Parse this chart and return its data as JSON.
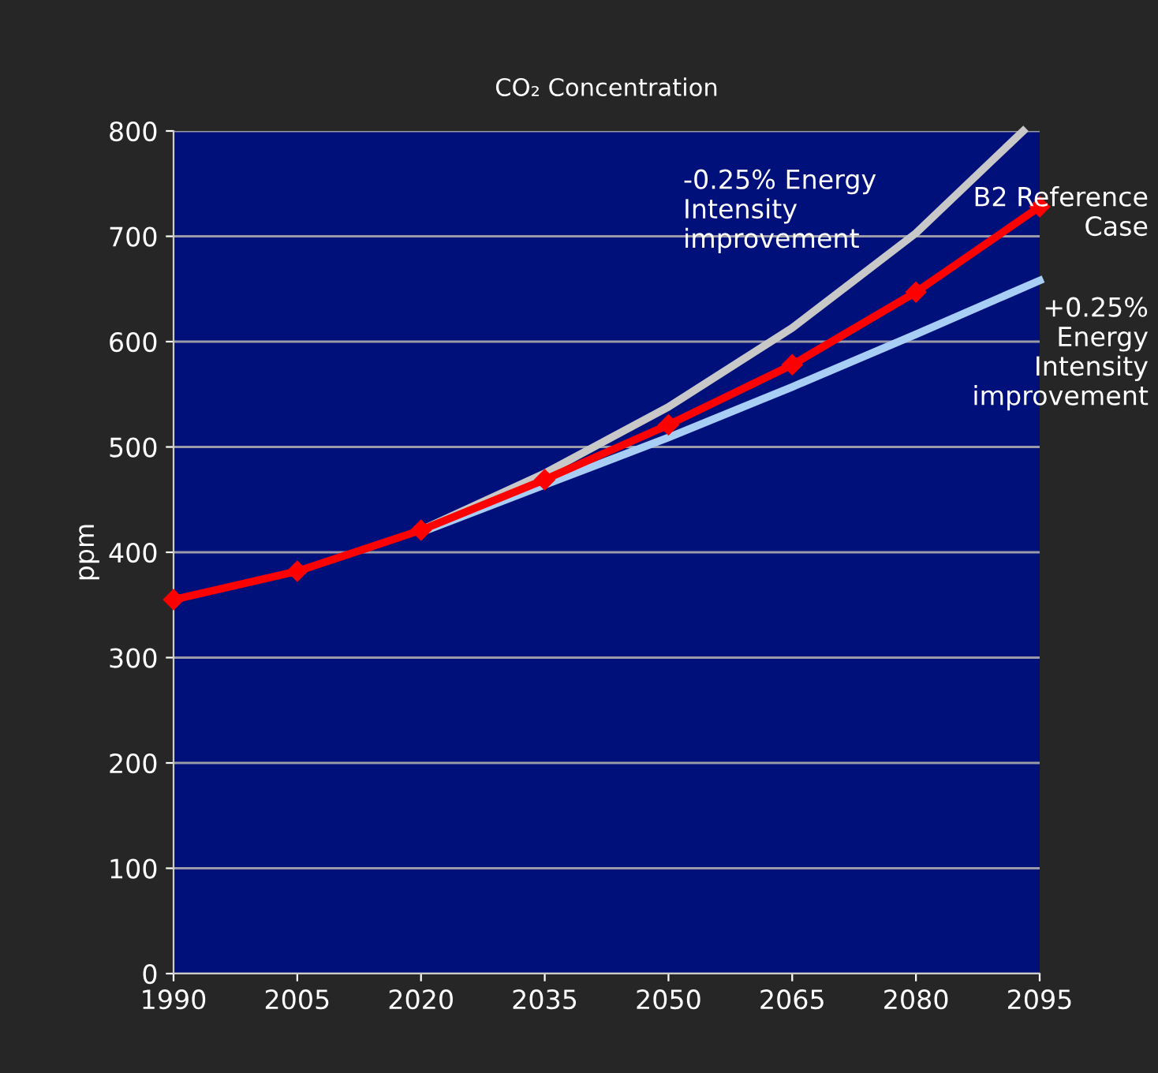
{
  "chart_data": {
    "type": "line",
    "title": "CO₂ Concentration",
    "ylabel": "ppm",
    "xlim": [
      1990,
      2095
    ],
    "xticks": [
      1990,
      2005,
      2020,
      2035,
      2050,
      2065,
      2080,
      2095
    ],
    "ylim": [
      0,
      800
    ],
    "yticks": [
      0,
      100,
      200,
      300,
      400,
      500,
      600,
      700,
      800
    ],
    "grid": "y",
    "legend": false,
    "series": [
      {
        "name": "-0.25% Energy\nIntensity\nimprovement",
        "color": "#c8c8c8",
        "marker": "none",
        "x": [
          2020,
          2035,
          2050,
          2065,
          2072.5,
          2080,
          2093
        ],
        "values": [
          421,
          475,
          538,
          613,
          658,
          703,
          800
        ]
      },
      {
        "name": "+0.25%\nEnergy\nIntensity\nimprovement",
        "color": "#a8cef5",
        "marker": "none",
        "x": [
          2020,
          2035,
          2050,
          2065,
          2080,
          2095
        ],
        "values": [
          419,
          464,
          509,
          557,
          607,
          658
        ]
      },
      {
        "name": "B2 Reference\nCase",
        "color": "#ff0000",
        "marker": "diamond",
        "x": [
          1990,
          2005,
          2020,
          2035,
          2050,
          2065,
          2080,
          2095
        ],
        "values": [
          355,
          382,
          421,
          469,
          521,
          578,
          647,
          728
        ]
      }
    ]
  }
}
